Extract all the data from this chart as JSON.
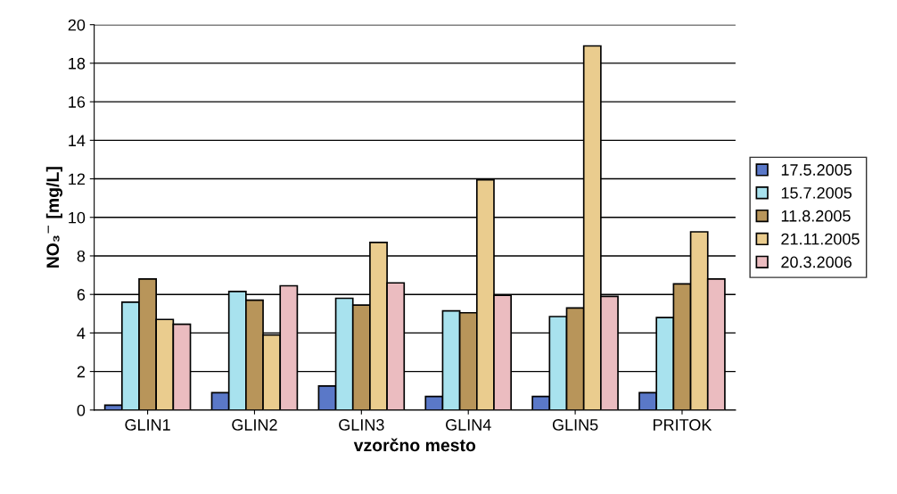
{
  "chart_data": {
    "type": "bar",
    "xlabel": "vzorčno mesto",
    "ylabel": "NO₃$^{−}$ [mg/L]",
    "categories": [
      "GLIN1",
      "GLIN2",
      "GLIN3",
      "GLIN4",
      "GLIN5",
      "PRITOK"
    ],
    "series": [
      {
        "name": "17.5.2005",
        "color": "#5a78c8",
        "values": [
          0.25,
          0.9,
          1.25,
          0.7,
          0.7,
          0.9
        ]
      },
      {
        "name": "15.7.2005",
        "color": "#a8e2ee",
        "values": [
          5.6,
          6.15,
          5.8,
          5.15,
          4.85,
          4.8
        ]
      },
      {
        "name": "11.8.2005",
        "color": "#b8955a",
        "values": [
          6.8,
          5.7,
          5.45,
          5.05,
          5.3,
          6.55
        ]
      },
      {
        "name": "21.11.2005",
        "color": "#eacc8e",
        "values": [
          4.7,
          3.9,
          8.7,
          11.95,
          18.9,
          9.25
        ]
      },
      {
        "name": "20.3.2006",
        "color": "#ebbcc0",
        "values": [
          4.45,
          6.45,
          6.6,
          5.95,
          5.9,
          6.8
        ]
      }
    ],
    "ylim": [
      0,
      20
    ],
    "yticks": [
      0,
      2,
      4,
      6,
      8,
      10,
      12,
      14,
      16,
      18,
      20
    ],
    "grid": "y",
    "legend": "right"
  }
}
